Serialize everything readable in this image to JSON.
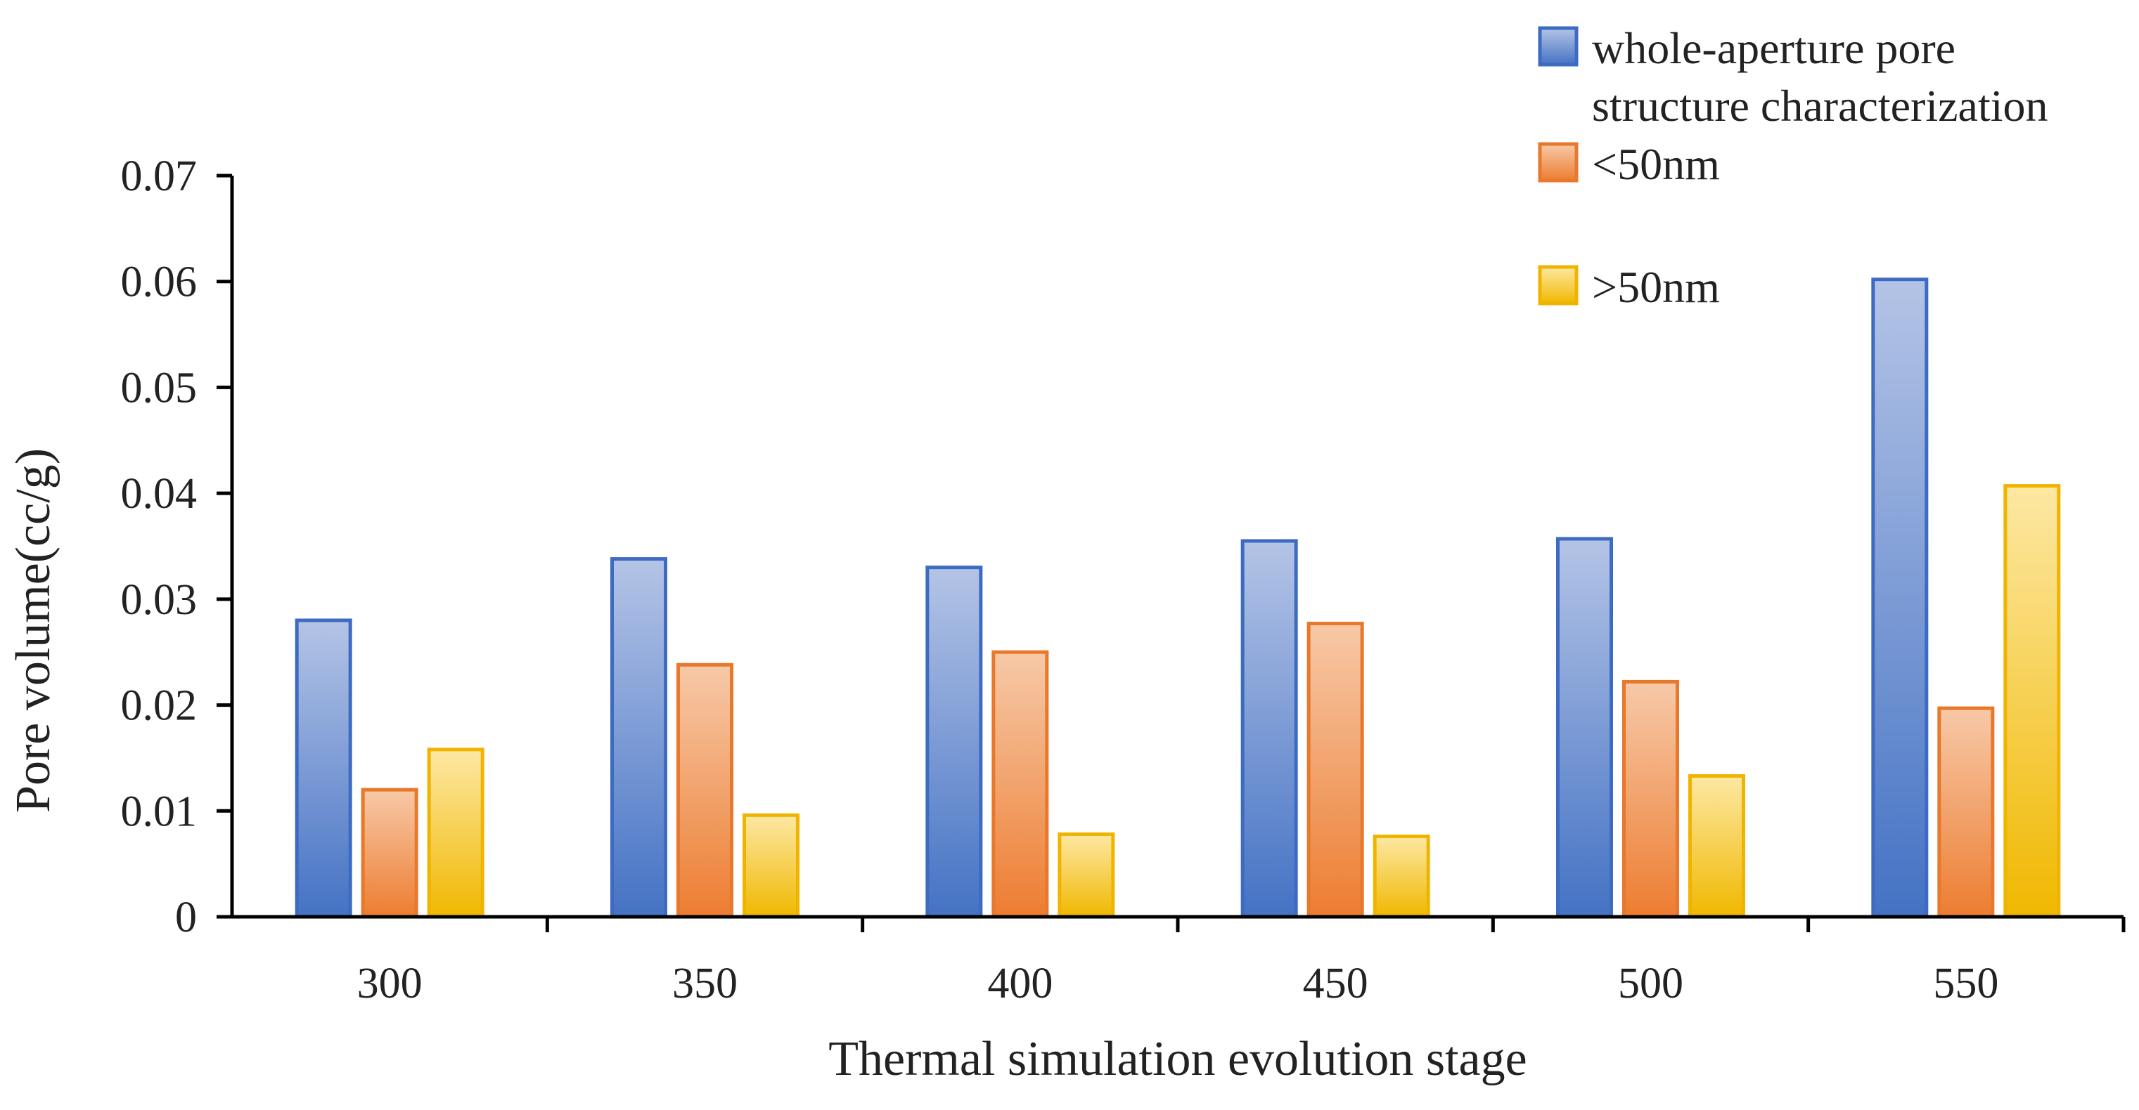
{
  "chart_data": {
    "type": "bar",
    "title": "",
    "xlabel": "Thermal simulation evolution stage",
    "ylabel": "Pore volume(cc/g)",
    "categories": [
      "300",
      "350",
      "400",
      "450",
      "500",
      "550"
    ],
    "ylim": [
      0,
      0.07
    ],
    "yticks": [
      "0",
      "0.01",
      "0.02",
      "0.03",
      "0.04",
      "0.05",
      "0.06",
      "0.07"
    ],
    "grid": false,
    "legend_position": "top-right",
    "series": [
      {
        "name": "whole-aperture pore structure characterization",
        "legend_lines": [
          "whole-aperture pore",
          "structure characterization"
        ],
        "values": [
          0.028,
          0.0338,
          0.033,
          0.0355,
          0.0357,
          0.0602
        ],
        "color_top": "#b4c4e6",
        "color_bottom": "#4472c4",
        "stroke": "#3e6bc2"
      },
      {
        "name": "<50nm",
        "legend_lines": [
          "<50nm"
        ],
        "values": [
          0.012,
          0.0238,
          0.025,
          0.0277,
          0.0222,
          0.0197
        ],
        "color_top": "#f7c9a8",
        "color_bottom": "#ed7d31",
        "stroke": "#e8782c"
      },
      {
        "name": ">50nm",
        "legend_lines": [
          ">50nm"
        ],
        "values": [
          0.0158,
          0.0096,
          0.0078,
          0.0076,
          0.0133,
          0.0407
        ],
        "color_top": "#fde8a4",
        "color_bottom": "#f0b800",
        "stroke": "#f0b400"
      }
    ]
  }
}
